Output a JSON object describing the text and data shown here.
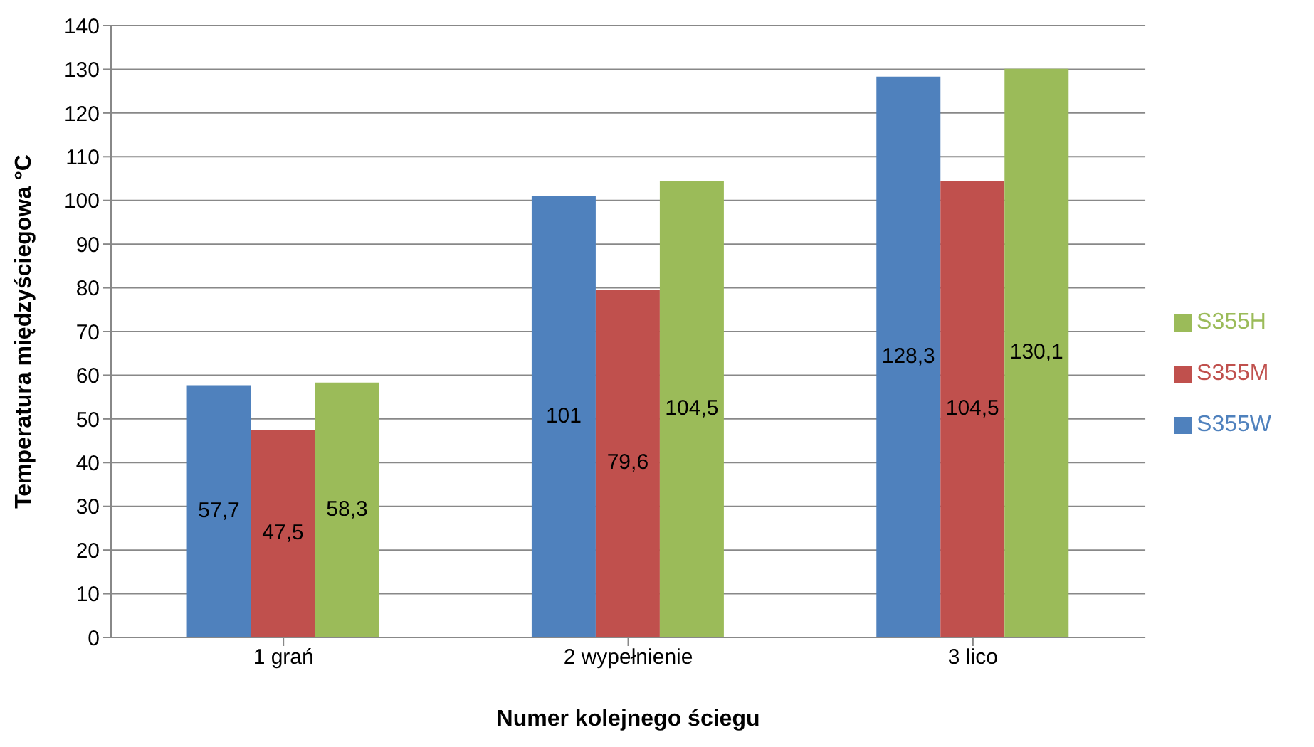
{
  "chart_data": {
    "type": "bar",
    "xlabel": "Numer kolejnego ściegu",
    "ylabel": "Temperatura międzyściegowa °C",
    "categories": [
      "1 grań",
      "2 wypełnienie",
      "3 lico"
    ],
    "series": [
      {
        "name": "S355W",
        "color": "#4f81bd",
        "values": [
          57.7,
          101,
          128.3
        ],
        "value_labels": [
          "57,7",
          "101",
          "128,3"
        ]
      },
      {
        "name": "S355M",
        "color": "#c0504d",
        "values": [
          47.5,
          79.6,
          104.5
        ],
        "value_labels": [
          "47,5",
          "79,6",
          "104,5"
        ]
      },
      {
        "name": "S355H",
        "color": "#9bbb59",
        "values": [
          58.3,
          104.5,
          130.1
        ],
        "value_labels": [
          "58,3",
          "104,5",
          "130,1"
        ]
      }
    ],
    "ylim": [
      0,
      140
    ],
    "yticks": [
      0,
      10,
      20,
      30,
      40,
      50,
      60,
      70,
      80,
      90,
      100,
      110,
      120,
      130,
      140
    ],
    "grid": "y",
    "legend": "right"
  }
}
